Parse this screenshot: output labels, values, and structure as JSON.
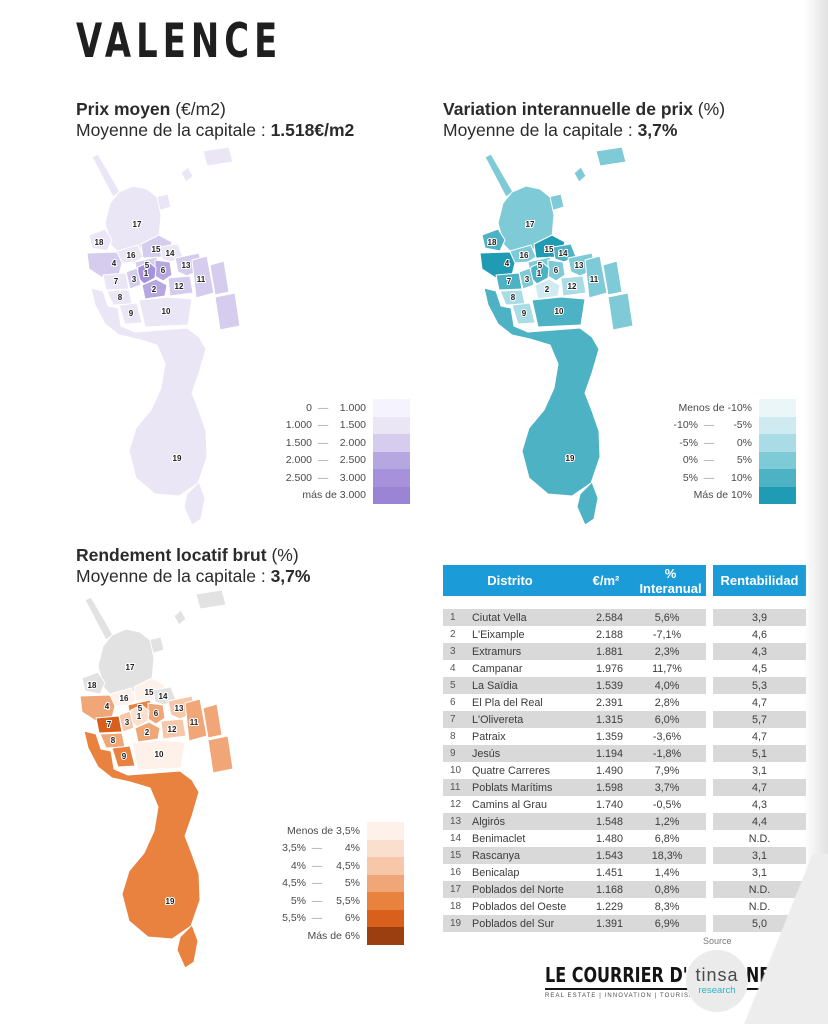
{
  "page": {
    "title": "VALENCE"
  },
  "sections": {
    "price": {
      "title_bold": "Prix moyen",
      "title_rest": " (€/m2)",
      "subtitle": "Moyenne de la capitale : ",
      "subtitle_value": "1.518€/m2"
    },
    "variation": {
      "title_bold": "Variation interannuelle de prix",
      "title_rest": " (%)",
      "subtitle": "Moyenne de la capitale : ",
      "subtitle_value": "3,7%"
    },
    "yield": {
      "title_bold": "Rendement locatif brut",
      "title_rest": " (%)",
      "subtitle": "Moyenne de la capitale : ",
      "subtitle_value": "3,7%"
    }
  },
  "legends": {
    "price": {
      "rows": [
        {
          "from": "0",
          "to": "1.000"
        },
        {
          "from": "1.000",
          "to": "1.500"
        },
        {
          "from": "1.500",
          "to": "2.000"
        },
        {
          "from": "2.000",
          "to": "2.500"
        },
        {
          "from": "2.500",
          "to": "3.000"
        },
        {
          "single": "más de 3.000"
        }
      ],
      "breaks": [
        1000,
        1500,
        2000,
        2500,
        3000
      ],
      "colors": [
        "#f5f3fb",
        "#ebe6f6",
        "#d6cdee",
        "#b7a7e0",
        "#a692da",
        "#9a84d4"
      ]
    },
    "variation": {
      "rows": [
        {
          "single": "Menos de -10%"
        },
        {
          "from": "-10%",
          "to": "-5%"
        },
        {
          "from": "-5%",
          "to": "0%"
        },
        {
          "from": "0%",
          "to": "5%"
        },
        {
          "from": "5%",
          "to": "10%"
        },
        {
          "single": "Más de 10%"
        }
      ],
      "breaks": [
        -10,
        -5,
        0,
        5,
        10
      ],
      "colors": [
        "#eaf6f8",
        "#cfeaf0",
        "#a9dce5",
        "#7fcad7",
        "#4db2c4",
        "#1f9cb4"
      ]
    },
    "yield": {
      "rows": [
        {
          "single": "Menos de 3,5%"
        },
        {
          "from": "3,5%",
          "to": "4%"
        },
        {
          "from": "4%",
          "to": "4,5%"
        },
        {
          "from": "4,5%",
          "to": "5%"
        },
        {
          "from": "5%",
          "to": "5,5%"
        },
        {
          "from": "5,5%",
          "to": "6%"
        },
        {
          "single": "Más de 6%"
        }
      ],
      "breaks": [
        3.5,
        4,
        4.5,
        5,
        5.5,
        6
      ],
      "colors": [
        "#fdf1ea",
        "#fadfce",
        "#f7c7a9",
        "#f1a677",
        "#e9813f",
        "#d95f1d",
        "#9c3f10"
      ]
    }
  },
  "map": {
    "nd_color": "#e2e2e2",
    "label_color": "#1c1c1c"
  },
  "table": {
    "headers": [
      "Distrito",
      "€/m²",
      "% Interanual",
      "Rentabilidad"
    ],
    "rows": [
      {
        "n": "1",
        "name": "Ciutat Vella",
        "price": "2.584",
        "var": "5,6%",
        "renta": "3,9"
      },
      {
        "n": "2",
        "name": "L'Eixample",
        "price": "2.188",
        "var": "-7,1%",
        "renta": "4,6"
      },
      {
        "n": "3",
        "name": "Extramurs",
        "price": "1.881",
        "var": "2,3%",
        "renta": "4,3"
      },
      {
        "n": "4",
        "name": "Campanar",
        "price": "1.976",
        "var": "11,7%",
        "renta": "4,5"
      },
      {
        "n": "5",
        "name": "La Saïdia",
        "price": "1.539",
        "var": "4,0%",
        "renta": "5,3"
      },
      {
        "n": "6",
        "name": "El Pla del Real",
        "price": "2.391",
        "var": "2,8%",
        "renta": "4,7"
      },
      {
        "n": "7",
        "name": "L'Olivereta",
        "price": "1.315",
        "var": "6,0%",
        "renta": "5,7"
      },
      {
        "n": "8",
        "name": "Patraix",
        "price": "1.359",
        "var": "-3,6%",
        "renta": "4,7"
      },
      {
        "n": "9",
        "name": "Jesús",
        "price": "1.194",
        "var": "-1,8%",
        "renta": "5,1"
      },
      {
        "n": "10",
        "name": "Quatre Carreres",
        "price": "1.490",
        "var": "7,9%",
        "renta": "3,1"
      },
      {
        "n": "11",
        "name": "Poblats Marítims",
        "price": "1.598",
        "var": "3,7%",
        "renta": "4,7"
      },
      {
        "n": "12",
        "name": "Camins al Grau",
        "price": "1.740",
        "var": "-0,5%",
        "renta": "4,3"
      },
      {
        "n": "13",
        "name": "Algirós",
        "price": "1.548",
        "var": "1,2%",
        "renta": "4,4"
      },
      {
        "n": "14",
        "name": "Benimaclet",
        "price": "1.480",
        "var": "6,8%",
        "renta": "N.D."
      },
      {
        "n": "15",
        "name": "Rascanya",
        "price": "1.543",
        "var": "18,3%",
        "renta": "3,1"
      },
      {
        "n": "16",
        "name": "Benicalap",
        "price": "1.451",
        "var": "1,4%",
        "renta": "3,1"
      },
      {
        "n": "17",
        "name": "Poblados del Norte",
        "price": "1.168",
        "var": "0,8%",
        "renta": "N.D."
      },
      {
        "n": "18",
        "name": "Poblados del Oeste",
        "price": "1.229",
        "var": "8,3%",
        "renta": "N.D."
      },
      {
        "n": "19",
        "name": "Poblados del Sur",
        "price": "1.391",
        "var": "6,9%",
        "renta": "5,0"
      }
    ]
  },
  "footer": {
    "source_label": "Source",
    "courrier_title": "LE COURRIER D'ESPAGNE",
    "courrier_tagline": "REAL ESTATE | INNOVATION | TOURISME | GREEN",
    "tinsa_name": "tinsa",
    "tinsa_sub": "research"
  },
  "chart_data": [
    {
      "type": "heatmap",
      "subtype": "choropleth-map",
      "title": "Prix moyen (€/m2)",
      "annotation": "Moyenne de la capitale : 1.518€/m2",
      "legend_bands": [
        "0–1.000",
        "1.000–1.500",
        "1.500–2.000",
        "2.000–2.500",
        "2.500–3.000",
        "más de 3.000"
      ],
      "categories": [
        "Ciutat Vella",
        "L'Eixample",
        "Extramurs",
        "Campanar",
        "La Saïdia",
        "El Pla del Real",
        "L'Olivereta",
        "Patraix",
        "Jesús",
        "Quatre Carreres",
        "Poblats Marítims",
        "Camins al Grau",
        "Algirós",
        "Benimaclet",
        "Rascanya",
        "Benicalap",
        "Poblados del Norte",
        "Poblados del Oeste",
        "Poblados del Sur"
      ],
      "values": [
        2584,
        2188,
        1881,
        1976,
        1539,
        2391,
        1315,
        1359,
        1194,
        1490,
        1598,
        1740,
        1548,
        1480,
        1543,
        1451,
        1168,
        1229,
        1391
      ]
    },
    {
      "type": "heatmap",
      "subtype": "choropleth-map",
      "title": "Variation interannuelle de prix (%)",
      "annotation": "Moyenne de la capitale : 3,7%",
      "legend_bands": [
        "Menos de -10%",
        "-10%–-5%",
        "-5%–0%",
        "0%–5%",
        "5%–10%",
        "Más de 10%"
      ],
      "categories": [
        "Ciutat Vella",
        "L'Eixample",
        "Extramurs",
        "Campanar",
        "La Saïdia",
        "El Pla del Real",
        "L'Olivereta",
        "Patraix",
        "Jesús",
        "Quatre Carreres",
        "Poblats Marítims",
        "Camins al Grau",
        "Algirós",
        "Benimaclet",
        "Rascanya",
        "Benicalap",
        "Poblados del Norte",
        "Poblados del Oeste",
        "Poblados del Sur"
      ],
      "values": [
        5.6,
        -7.1,
        2.3,
        11.7,
        4.0,
        2.8,
        6.0,
        -3.6,
        -1.8,
        7.9,
        3.7,
        -0.5,
        1.2,
        6.8,
        18.3,
        1.4,
        0.8,
        8.3,
        6.9
      ]
    },
    {
      "type": "heatmap",
      "subtype": "choropleth-map",
      "title": "Rendement locatif brut (%)",
      "annotation": "Moyenne de la capitale : 3,7%",
      "legend_bands": [
        "Menos de 3,5%",
        "3,5%–4%",
        "4%–4,5%",
        "4,5%–5%",
        "5%–5,5%",
        "5,5%–6%",
        "Más de 6%"
      ],
      "categories": [
        "Ciutat Vella",
        "L'Eixample",
        "Extramurs",
        "Campanar",
        "La Saïdia",
        "El Pla del Real",
        "L'Olivereta",
        "Patraix",
        "Jesús",
        "Quatre Carreres",
        "Poblats Marítims",
        "Camins al Grau",
        "Algirós",
        "Benimaclet",
        "Rascanya",
        "Benicalap",
        "Poblados del Norte",
        "Poblados del Oeste",
        "Poblados del Sur"
      ],
      "values": [
        3.9,
        4.6,
        4.3,
        4.5,
        5.3,
        4.7,
        5.7,
        4.7,
        5.1,
        3.1,
        4.7,
        4.3,
        4.4,
        null,
        3.1,
        3.1,
        null,
        null,
        5.0
      ]
    },
    {
      "type": "table",
      "columns": [
        "Distrito",
        "€/m²",
        "% Interanual",
        "Rentabilidad"
      ],
      "rows": [
        [
          "Ciutat Vella",
          2584,
          "5,6%",
          "3,9"
        ],
        [
          "L'Eixample",
          2188,
          "-7,1%",
          "4,6"
        ],
        [
          "Extramurs",
          1881,
          "2,3%",
          "4,3"
        ],
        [
          "Campanar",
          1976,
          "11,7%",
          "4,5"
        ],
        [
          "La Saïdia",
          1539,
          "4,0%",
          "5,3"
        ],
        [
          "El Pla del Real",
          2391,
          "2,8%",
          "4,7"
        ],
        [
          "L'Olivereta",
          1315,
          "6,0%",
          "5,7"
        ],
        [
          "Patraix",
          1359,
          "-3,6%",
          "4,7"
        ],
        [
          "Jesús",
          1194,
          "-1,8%",
          "5,1"
        ],
        [
          "Quatre Carreres",
          1490,
          "7,9%",
          "3,1"
        ],
        [
          "Poblats Marítims",
          1598,
          "3,7%",
          "4,7"
        ],
        [
          "Camins al Grau",
          1740,
          "-0,5%",
          "4,3"
        ],
        [
          "Algirós",
          1548,
          "1,2%",
          "4,4"
        ],
        [
          "Benimaclet",
          1480,
          "6,8%",
          "N.D."
        ],
        [
          "Rascanya",
          1543,
          "18,3%",
          "3,1"
        ],
        [
          "Benicalap",
          1451,
          "1,4%",
          "3,1"
        ],
        [
          "Poblados del Norte",
          1168,
          "0,8%",
          "N.D."
        ],
        [
          "Poblados del Oeste",
          1229,
          "8,3%",
          "N.D."
        ],
        [
          "Poblados del Sur",
          1391,
          "6,9%",
          "5,0"
        ]
      ]
    }
  ]
}
